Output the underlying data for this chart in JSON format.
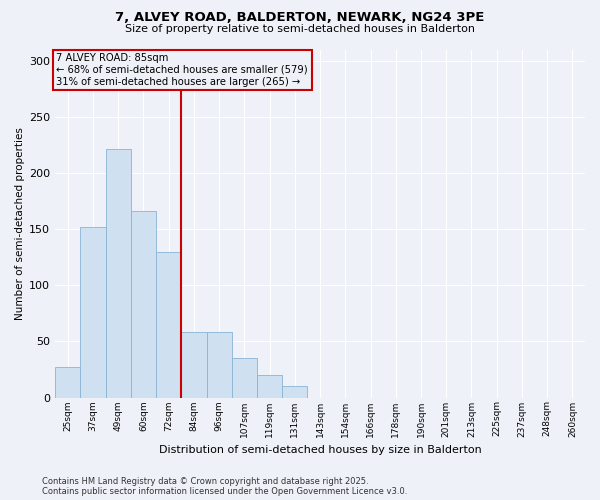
{
  "title": "7, ALVEY ROAD, BALDERTON, NEWARK, NG24 3PE",
  "subtitle": "Size of property relative to semi-detached houses in Balderton",
  "xlabel": "Distribution of semi-detached houses by size in Balderton",
  "ylabel": "Number of semi-detached properties",
  "categories": [
    "25sqm",
    "37sqm",
    "49sqm",
    "60sqm",
    "72sqm",
    "84sqm",
    "96sqm",
    "107sqm",
    "119sqm",
    "131sqm",
    "143sqm",
    "154sqm",
    "166sqm",
    "178sqm",
    "190sqm",
    "201sqm",
    "213sqm",
    "225sqm",
    "237sqm",
    "248sqm",
    "260sqm"
  ],
  "values": [
    27,
    152,
    222,
    166,
    130,
    58,
    58,
    35,
    20,
    10,
    0,
    0,
    0,
    0,
    0,
    0,
    0,
    0,
    0,
    0,
    0
  ],
  "bar_color": "#cfe0f0",
  "bar_edge_color": "#8ab4d4",
  "property_label": "7 ALVEY ROAD: 85sqm",
  "vline_x_index": 5,
  "annotation_smaller": "← 68% of semi-detached houses are smaller (579)",
  "annotation_larger": "31% of semi-detached houses are larger (265) →",
  "vline_color": "#cc0000",
  "box_color": "#cc0000",
  "ylim": [
    0,
    310
  ],
  "yticks": [
    0,
    50,
    100,
    150,
    200,
    250,
    300
  ],
  "background_color": "#eef2f8",
  "grid_color": "#ffffff",
  "footnote": "Contains HM Land Registry data © Crown copyright and database right 2025.\nContains public sector information licensed under the Open Government Licence v3.0."
}
